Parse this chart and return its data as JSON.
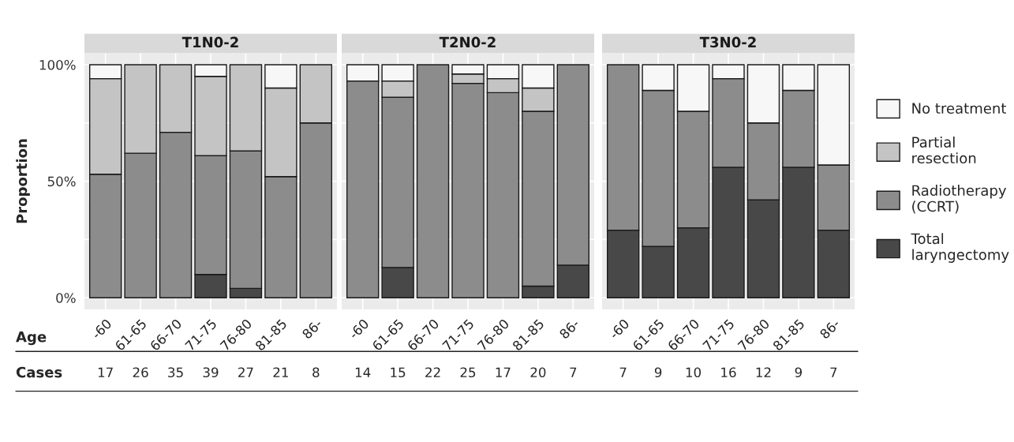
{
  "chart_data": [
    {
      "type": "bar",
      "title": "T1N0-2",
      "ylabel": "Proportion",
      "xlabel": "Age",
      "stacked": true,
      "grid": true,
      "categories": [
        "-60",
        "61-65",
        "66-70",
        "71-75",
        "76-80",
        "81-85",
        "86-"
      ],
      "ylim": [
        -5,
        105
      ],
      "yticks": [
        {
          "value": 0,
          "label": "0%"
        },
        {
          "value": 25,
          "label": null
        },
        {
          "value": 50,
          "label": "50%"
        },
        {
          "value": 75,
          "label": null
        },
        {
          "value": 100,
          "label": "100%"
        }
      ],
      "series": [
        {
          "name": "Total\nlaryngectomy",
          "color": "#484848",
          "values": [
            0,
            0,
            0,
            10,
            4,
            0,
            0
          ]
        },
        {
          "name": "Radiotherapy\n(CCRT)",
          "color": "#8c8c8c",
          "values": [
            53,
            62,
            71,
            51,
            59,
            52,
            75
          ]
        },
        {
          "name": "Partial\nresection",
          "color": "#c4c4c4",
          "values": [
            41,
            38,
            29,
            34,
            37,
            38,
            25
          ]
        },
        {
          "name": "No treatment",
          "color": "#f7f7f7",
          "values": [
            6,
            0,
            0,
            5,
            0,
            10,
            0
          ]
        }
      ],
      "annotations": [
        "Cases",
        "17",
        "26",
        "35",
        "39",
        "27",
        "21",
        "8"
      ],
      "legend": "right"
    },
    {
      "type": "bar",
      "title": "T2N0-2",
      "stacked": true,
      "grid": true,
      "tick_labels": "x",
      "categories": [
        "-60",
        "61-65",
        "66-70",
        "71-75",
        "76-80",
        "81-85",
        "86-"
      ],
      "ylim": [
        -5,
        105
      ],
      "series": [
        {
          "color": "#484848",
          "values": [
            0,
            13,
            0,
            0,
            0,
            5,
            14
          ]
        },
        {
          "color": "#8c8c8c",
          "values": [
            93,
            73,
            100,
            92,
            88,
            75,
            86
          ]
        },
        {
          "color": "#c4c4c4",
          "values": [
            0,
            7,
            0,
            4,
            6,
            10,
            0
          ]
        },
        {
          "color": "#f7f7f7",
          "values": [
            7,
            7,
            0,
            4,
            6,
            10,
            0
          ]
        }
      ],
      "annotations": [
        "14",
        "15",
        "22",
        "25",
        "17",
        "20",
        "7"
      ]
    },
    {
      "type": "bar",
      "title": "T3N0-2",
      "stacked": true,
      "grid": true,
      "tick_labels": "x",
      "categories": [
        "-60",
        "61-65",
        "66-70",
        "71-75",
        "76-80",
        "81-85",
        "86-"
      ],
      "ylim": [
        -5,
        105
      ],
      "series": [
        {
          "color": "#484848",
          "values": [
            29,
            22,
            30,
            56,
            42,
            56,
            29
          ]
        },
        {
          "color": "#8c8c8c",
          "values": [
            71,
            67,
            50,
            38,
            33,
            33,
            28
          ]
        },
        {
          "color": "#c4c4c4",
          "values": [
            0,
            0,
            0,
            0,
            0,
            0,
            0
          ]
        },
        {
          "color": "#f7f7f7",
          "values": [
            0,
            11,
            20,
            6,
            25,
            11,
            43
          ]
        }
      ],
      "annotations": [
        "7",
        "9",
        "10",
        "16",
        "12",
        "9",
        "7"
      ]
    }
  ]
}
